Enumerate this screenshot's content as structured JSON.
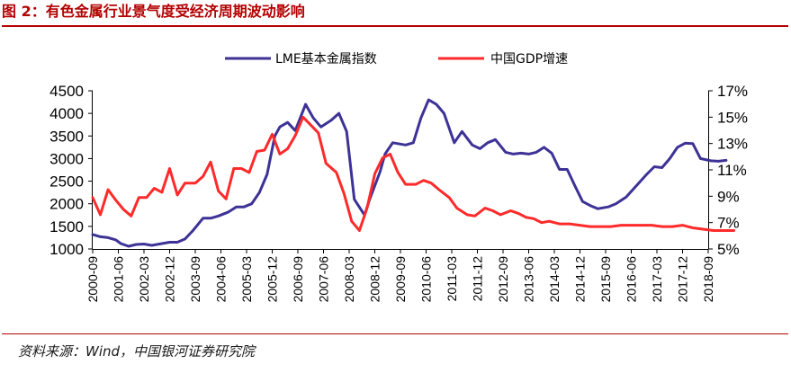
{
  "figure": {
    "title": "图 2：有色金属行业景气度受经济周期波动影响",
    "source": "资料来源：Wind，中国银河证券研究院"
  },
  "colors": {
    "title": "#b30000",
    "lme": "#3d3296",
    "gdp": "#ff2a2a"
  },
  "chart_data": {
    "type": "line",
    "x_labels": [
      "2000-09",
      "2001-06",
      "2002-03",
      "2002-12",
      "2003-09",
      "2004-06",
      "2005-03",
      "2005-12",
      "2006-09",
      "2007-06",
      "2008-03",
      "2008-12",
      "2009-09",
      "2010-06",
      "2011-03",
      "2011-12",
      "2012-09",
      "2013-06",
      "2014-03",
      "2014-12",
      "2015-09",
      "2016-06",
      "2017-03",
      "2017-12",
      "2018-09"
    ],
    "legend_position": "top-center",
    "grid": false,
    "y_left": {
      "min": 1000,
      "max": 4500,
      "ticks": [
        "1000",
        "1500",
        "2000",
        "2500",
        "3000",
        "3500",
        "4000",
        "4500"
      ]
    },
    "y_right": {
      "min": 5,
      "max": 17,
      "ticks": [
        "5%",
        "7%",
        "9%",
        "11%",
        "13%",
        "15%",
        "17%"
      ]
    },
    "series": [
      {
        "name": "LME基本金属指数",
        "axis": "left",
        "color": "#3d3296",
        "x": [
          0,
          0.3,
          0.6,
          0.9,
          1.1,
          1.4,
          1.7,
          2.0,
          2.3,
          2.6,
          3.0,
          3.3,
          3.6,
          3.9,
          4.3,
          4.6,
          4.9,
          5.3,
          5.6,
          5.9,
          6.2,
          6.5,
          6.8,
          7.1,
          7.3,
          7.6,
          7.9,
          8.3,
          8.6,
          8.9,
          9.3,
          9.6,
          9.9,
          10.2,
          10.6,
          10.8,
          11.2,
          11.4,
          11.7,
          12.2,
          12.5,
          12.8,
          13.1,
          13.4,
          13.7,
          14.1,
          14.4,
          14.8,
          15.1,
          15.4,
          15.7,
          16.1,
          16.4,
          16.7,
          17.0,
          17.3,
          17.6,
          17.9,
          18.2,
          18.5,
          18.8,
          19.1,
          19.4,
          19.7,
          20.1,
          20.4,
          20.8,
          21.2,
          21.6,
          21.9,
          22.2,
          22.5,
          22.8,
          23.1,
          23.4,
          23.7,
          24.1,
          24.4,
          24.7
        ],
        "y": [
          1320,
          1270,
          1250,
          1200,
          1120,
          1060,
          1100,
          1110,
          1080,
          1110,
          1150,
          1150,
          1220,
          1400,
          1680,
          1680,
          1730,
          1820,
          1930,
          1930,
          2000,
          2250,
          2650,
          3500,
          3700,
          3800,
          3620,
          4200,
          3900,
          3700,
          3850,
          4000,
          3600,
          2100,
          1750,
          2100,
          2700,
          3100,
          3350,
          3300,
          3350,
          3900,
          4300,
          4200,
          4000,
          3350,
          3600,
          3300,
          3220,
          3350,
          3420,
          3140,
          3100,
          3120,
          3100,
          3140,
          3250,
          3120,
          2760,
          2760,
          2400,
          2050,
          1960,
          1890,
          1930,
          2000,
          2150,
          2400,
          2650,
          2820,
          2800,
          3000,
          3250,
          3340,
          3330,
          3000,
          2950,
          2940,
          2960
        ]
      },
      {
        "name": "中国GDP增速",
        "axis": "right",
        "color": "#ff2a2a",
        "x": [
          0,
          0.3,
          0.6,
          0.9,
          1.2,
          1.5,
          1.8,
          2.1,
          2.4,
          2.7,
          3.0,
          3.3,
          3.6,
          4.0,
          4.3,
          4.6,
          4.9,
          5.2,
          5.5,
          5.8,
          6.1,
          6.4,
          6.7,
          7.0,
          7.3,
          7.6,
          7.9,
          8.2,
          8.5,
          8.8,
          9.1,
          9.5,
          9.8,
          10.1,
          10.4,
          10.7,
          11.0,
          11.3,
          11.6,
          11.9,
          12.2,
          12.6,
          12.9,
          13.2,
          13.5,
          13.9,
          14.2,
          14.6,
          14.9,
          15.3,
          15.6,
          15.9,
          16.3,
          16.6,
          16.9,
          17.2,
          17.5,
          17.8,
          18.2,
          18.6,
          19.0,
          19.4,
          19.8,
          20.2,
          20.6,
          21.0,
          21.4,
          21.8,
          22.2,
          22.6,
          23.0,
          23.4,
          23.8,
          24.2,
          24.6,
          25.0
        ],
        "y": [
          8.9,
          7.6,
          9.5,
          8.7,
          8.0,
          7.5,
          8.9,
          8.9,
          9.6,
          9.3,
          11.1,
          9.1,
          10.0,
          10.0,
          10.5,
          11.6,
          9.4,
          8.8,
          11.1,
          11.1,
          10.8,
          12.4,
          12.5,
          13.7,
          12.2,
          12.6,
          13.6,
          15.0,
          14.4,
          13.8,
          11.5,
          10.8,
          9.2,
          7.1,
          6.4,
          8.1,
          10.7,
          11.9,
          12.2,
          10.8,
          9.9,
          9.9,
          10.2,
          10.0,
          9.5,
          8.9,
          8.1,
          7.6,
          7.5,
          8.1,
          7.9,
          7.6,
          7.9,
          7.7,
          7.4,
          7.3,
          7.0,
          7.1,
          6.9,
          6.9,
          6.8,
          6.7,
          6.7,
          6.7,
          6.8,
          6.8,
          6.8,
          6.8,
          6.7,
          6.7,
          6.8,
          6.6,
          6.5,
          6.4,
          6.4,
          6.4
        ]
      }
    ]
  }
}
